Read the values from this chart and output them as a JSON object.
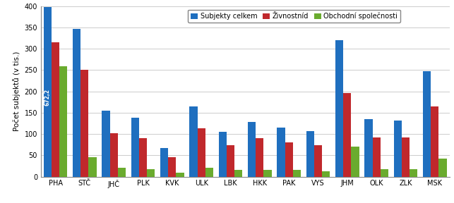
{
  "categories": [
    "PHA",
    "STČ",
    "JHČ",
    "PLK",
    "KVK",
    "ULK",
    "LBK",
    "HKK",
    "PAK",
    "VYS",
    "JHM",
    "OLK",
    "ZLK",
    "MSK"
  ],
  "subjekty_celkem": [
    397,
    347,
    155,
    138,
    67,
    164,
    105,
    129,
    115,
    107,
    320,
    135,
    132,
    247
  ],
  "zivnostnici": [
    315,
    250,
    102,
    90,
    46,
    113,
    73,
    90,
    80,
    74,
    196,
    92,
    92,
    164
  ],
  "obchodni_spolecnosti": [
    259,
    46,
    20,
    18,
    10,
    20,
    15,
    15,
    15,
    13,
    70,
    18,
    18,
    42
  ],
  "bar_color_blue": "#1F6FBF",
  "bar_color_red": "#C0282C",
  "bar_color_green": "#6AAB2E",
  "ylabel": "Počet subjektů (v tis.)",
  "ylim": [
    0,
    400
  ],
  "yticks": [
    0,
    50,
    100,
    150,
    200,
    250,
    300,
    350,
    400
  ],
  "legend_labels": [
    "Subjekty celkem",
    "Živnostníd",
    "Obchodní společnosti"
  ],
  "annotation": "672,2"
}
